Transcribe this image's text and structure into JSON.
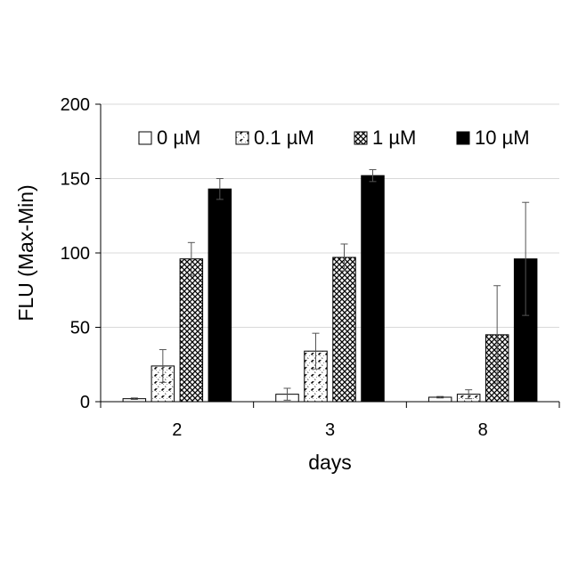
{
  "chart_data": {
    "type": "bar",
    "xlabel": "days",
    "ylabel": "FLU (Max-Min)",
    "categories": [
      "2",
      "3",
      "8"
    ],
    "ylim": [
      0,
      200
    ],
    "yticks": [
      0,
      50,
      100,
      150,
      200
    ],
    "grid": true,
    "legend_position": "top",
    "series": [
      {
        "name": "0 µM",
        "values": [
          2,
          5,
          3
        ],
        "errors": [
          0.5,
          4,
          0.5
        ],
        "fill": "white",
        "color": "#ffffff"
      },
      {
        "name": "0.1 µM",
        "values": [
          24,
          34,
          5
        ],
        "errors": [
          11,
          12,
          3
        ],
        "fill": "hatched",
        "color": "#000000"
      },
      {
        "name": "1 µM",
        "values": [
          96,
          97,
          45
        ],
        "errors": [
          11,
          9,
          33
        ],
        "fill": "crosshatch",
        "color": "#000000"
      },
      {
        "name": "10 µM",
        "values": [
          143,
          152,
          96
        ],
        "errors": [
          7,
          4,
          38
        ],
        "fill": "solid",
        "color": "#000000"
      }
    ]
  }
}
